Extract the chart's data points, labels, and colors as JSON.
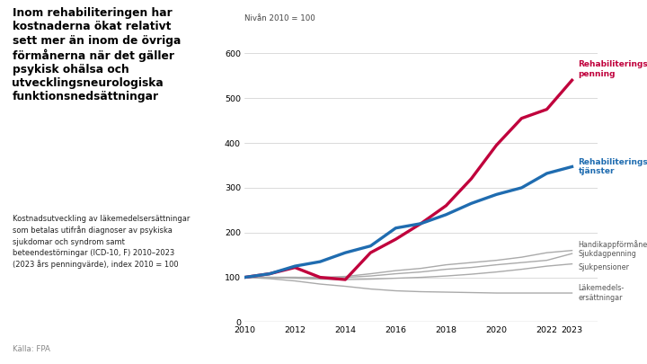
{
  "years": [
    2010,
    2011,
    2012,
    2013,
    2014,
    2015,
    2016,
    2017,
    2018,
    2019,
    2020,
    2021,
    2022,
    2023
  ],
  "rehabiliteringspenning": [
    100,
    108,
    122,
    100,
    95,
    155,
    185,
    220,
    260,
    320,
    395,
    455,
    475,
    540
  ],
  "rehabiliteringstjanster": [
    100,
    108,
    125,
    135,
    155,
    170,
    210,
    220,
    240,
    265,
    285,
    300,
    332,
    347
  ],
  "handikappformaner": [
    100,
    100,
    100,
    100,
    102,
    108,
    115,
    120,
    128,
    133,
    138,
    145,
    155,
    160
  ],
  "sjukdagpenning": [
    100,
    100,
    100,
    98,
    100,
    103,
    108,
    112,
    118,
    122,
    128,
    133,
    138,
    153
  ],
  "sjukpensioner": [
    100,
    100,
    98,
    96,
    95,
    96,
    98,
    100,
    103,
    107,
    112,
    118,
    125,
    130
  ],
  "lakemedelsersattningar": [
    100,
    97,
    92,
    85,
    80,
    74,
    70,
    68,
    67,
    66,
    65,
    65,
    65,
    65
  ],
  "color_rehpen": "#c0003c",
  "color_rehtjan": "#1f6cb0",
  "color_gray": "#aaaaaa",
  "title_main": "Inom rehabiliteringen har\nkostnaderna ökat relativt\nsett mer än inom de övriga\nförmånerna när det gäller\npsykisk ohälsa och\nutvecklingsneurologiska\nfunktionsnedsättningar",
  "subtitle": "Kostnadsutveckling av läkemedelsersättningar\nsom betalas utifrån diagnoser av psykiska\nsjukdomar och syndrom samt\nbeteendestörningar (ICD-10, F) 2010–2023\n(2023 års penningvärde), index 2010 = 100",
  "ylabel": "Nivån 2010 = 100",
  "source": "Källa: FPA",
  "label_rehpen": "Rehabiliterings-\npenning",
  "label_rehtjan": "Rehabiliterings-\ntjänster",
  "label_handikapp": "Handikappförmåner",
  "label_sjukdag": "Sjukdagpenning",
  "label_sjukpen": "Sjukpensioner",
  "label_lakemedel": "Läkemedels-\nersättningar",
  "ylim": [
    0,
    650
  ],
  "yticks": [
    0,
    100,
    200,
    300,
    400,
    500,
    600
  ],
  "background_color": "#ffffff"
}
